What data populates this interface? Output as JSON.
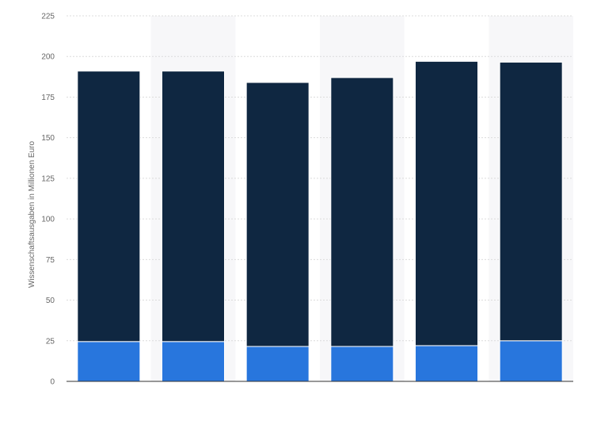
{
  "chart_data": {
    "type": "bar",
    "stacked": true,
    "categories": [
      "",
      "",
      "",
      "",
      "",
      ""
    ],
    "series": [
      {
        "color": "#2876dd",
        "values": [
          24.5,
          24.5,
          21.5,
          21.5,
          22,
          25
        ]
      },
      {
        "color": "#0f2741",
        "values": [
          166.5,
          166.5,
          162.5,
          165.5,
          175,
          171.5
        ]
      }
    ],
    "ylabel": "Wissenschaftsausgaben in Millionen Euro",
    "ylim": [
      0,
      225
    ],
    "yticks": [
      0,
      25,
      50,
      75,
      100,
      125,
      150,
      175,
      200,
      225
    ],
    "grid": true,
    "legend": "none"
  }
}
